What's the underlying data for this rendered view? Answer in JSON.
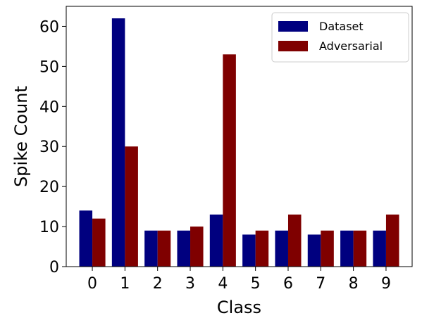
{
  "chart_data": {
    "type": "bar",
    "categories": [
      "0",
      "1",
      "2",
      "3",
      "4",
      "5",
      "6",
      "7",
      "8",
      "9"
    ],
    "series": [
      {
        "name": "Dataset",
        "color": "#00007f",
        "values": [
          14,
          62,
          9,
          9,
          13,
          8,
          9,
          8,
          9,
          9
        ]
      },
      {
        "name": "Adversarial",
        "color": "#7f0000",
        "values": [
          12,
          30,
          9,
          10,
          53,
          9,
          13,
          9,
          9,
          13
        ]
      }
    ],
    "xlabel": "Class",
    "ylabel": "Spike Count",
    "ylim": [
      0,
      65
    ],
    "yticks": [
      0,
      10,
      20,
      30,
      40,
      50,
      60
    ],
    "grid": false,
    "legend_position": "top-right"
  }
}
